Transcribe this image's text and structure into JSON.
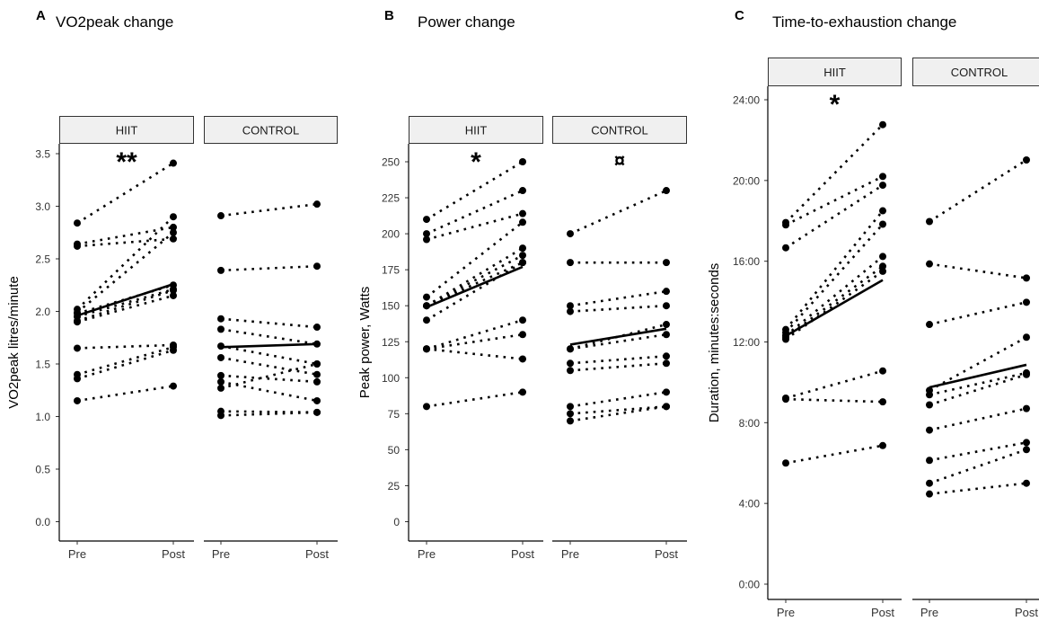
{
  "chart_data": [
    {
      "type": "line",
      "panel_letter": "A",
      "title": "VO2peak change",
      "ylabel": "VO2peak litres/minute",
      "xlabel": "",
      "x_tick_labels": [
        "Pre",
        "Post"
      ],
      "y_ticks": [
        0.0,
        0.5,
        1.0,
        1.5,
        2.0,
        2.5,
        3.0,
        3.5
      ],
      "y_tick_labels": [
        "0.0",
        "0.5",
        "1.0",
        "1.5",
        "2.0",
        "2.5",
        "3.0",
        "3.5"
      ],
      "ylim": [
        -0.12,
        3.55
      ],
      "grid": false,
      "facets": [
        {
          "strip_label": "HIIT",
          "significance": "**",
          "subjects": [
            [
              2.84,
              3.41
            ],
            [
              2.64,
              2.8
            ],
            [
              2.62,
              2.69
            ],
            [
              2.02,
              2.9
            ],
            [
              1.99,
              2.75
            ],
            [
              1.98,
              2.25
            ],
            [
              1.95,
              2.21
            ],
            [
              1.91,
              2.2
            ],
            [
              1.9,
              2.15
            ],
            [
              1.65,
              1.68
            ],
            [
              1.4,
              1.66
            ],
            [
              1.36,
              1.63
            ],
            [
              1.15,
              1.29
            ]
          ],
          "mean": [
            1.96,
            2.26
          ]
        },
        {
          "strip_label": "CONTROL",
          "significance": "",
          "subjects": [
            [
              2.91,
              3.02
            ],
            [
              2.39,
              2.43
            ],
            [
              1.93,
              1.85
            ],
            [
              1.83,
              1.69
            ],
            [
              1.67,
              1.5
            ],
            [
              1.56,
              1.4
            ],
            [
              1.39,
              1.33
            ],
            [
              1.33,
              1.15
            ],
            [
              1.27,
              1.5
            ],
            [
              1.05,
              1.04
            ],
            [
              1.01,
              1.04
            ]
          ],
          "mean": [
            1.66,
            1.69
          ]
        }
      ]
    },
    {
      "type": "line",
      "panel_letter": "B",
      "title": "Power change",
      "ylabel": "Peak power, Watts",
      "xlabel": "",
      "x_tick_labels": [
        "Pre",
        "Post"
      ],
      "y_ticks": [
        0,
        25,
        50,
        75,
        100,
        125,
        150,
        175,
        200,
        225,
        250
      ],
      "y_tick_labels": [
        "0",
        "25",
        "50",
        "75",
        "100",
        "125",
        "150",
        "175",
        "200",
        "225",
        "250"
      ],
      "ylim": [
        -8,
        255
      ],
      "grid": false,
      "facets": [
        {
          "strip_label": "HIIT",
          "significance": "*",
          "subjects": [
            [
              210,
              250
            ],
            [
              200,
              230
            ],
            [
              196,
              214
            ],
            [
              156,
              208
            ],
            [
              150,
              190
            ],
            [
              150,
              185
            ],
            [
              150,
              180
            ],
            [
              140,
              180
            ],
            [
              120,
              140
            ],
            [
              120,
              130
            ],
            [
              120,
              113
            ],
            [
              80,
              90
            ]
          ],
          "mean": [
            149,
            177
          ]
        },
        {
          "strip_label": "CONTROL",
          "significance": "¤",
          "subjects": [
            [
              200,
              230
            ],
            [
              180,
              180
            ],
            [
              150,
              160
            ],
            [
              146,
              150
            ],
            [
              120,
              137
            ],
            [
              120,
              130
            ],
            [
              110,
              115
            ],
            [
              105,
              110
            ],
            [
              80,
              90
            ],
            [
              75,
              80
            ],
            [
              70,
              80
            ]
          ],
          "mean": [
            123,
            134
          ]
        }
      ]
    },
    {
      "type": "line",
      "panel_letter": "C",
      "title": "Time-to-exhaustion change",
      "ylabel": "Duration, minutes:seconds",
      "xlabel": "",
      "x_tick_labels": [
        "Pre",
        "Post"
      ],
      "y_ticks": [
        0,
        240,
        480,
        720,
        960,
        1200,
        1440
      ],
      "y_tick_labels": [
        "0:00",
        "4:00",
        "8:00",
        "12:00",
        "16:00",
        "20:00",
        "24:00"
      ],
      "ylim": [
        -30,
        1460
      ],
      "grid": false,
      "facets": [
        {
          "strip_label": "HIIT",
          "significance": "*",
          "subjects": [
            [
              1075,
              1366
            ],
            [
              1068,
              1212
            ],
            [
              1000,
              1186
            ],
            [
              757,
              1110
            ],
            [
              748,
              1070
            ],
            [
              739,
              974
            ],
            [
              734,
              945
            ],
            [
              728,
              930
            ],
            [
              553,
              634
            ],
            [
              550,
              542
            ],
            [
              360,
              412
            ]
          ],
          "mean": [
            738,
            904
          ]
        },
        {
          "strip_label": "CONTROL",
          "significance": "",
          "subjects": [
            [
              1078,
              1261
            ],
            [
              952,
              910
            ],
            [
              772,
              838
            ],
            [
              576,
              734
            ],
            [
              563,
              628
            ],
            [
              533,
              623
            ],
            [
              458,
              522
            ],
            [
              368,
              421
            ],
            [
              300,
              400
            ],
            [
              268,
              300
            ]
          ],
          "mean": [
            585,
            652
          ]
        }
      ]
    }
  ]
}
